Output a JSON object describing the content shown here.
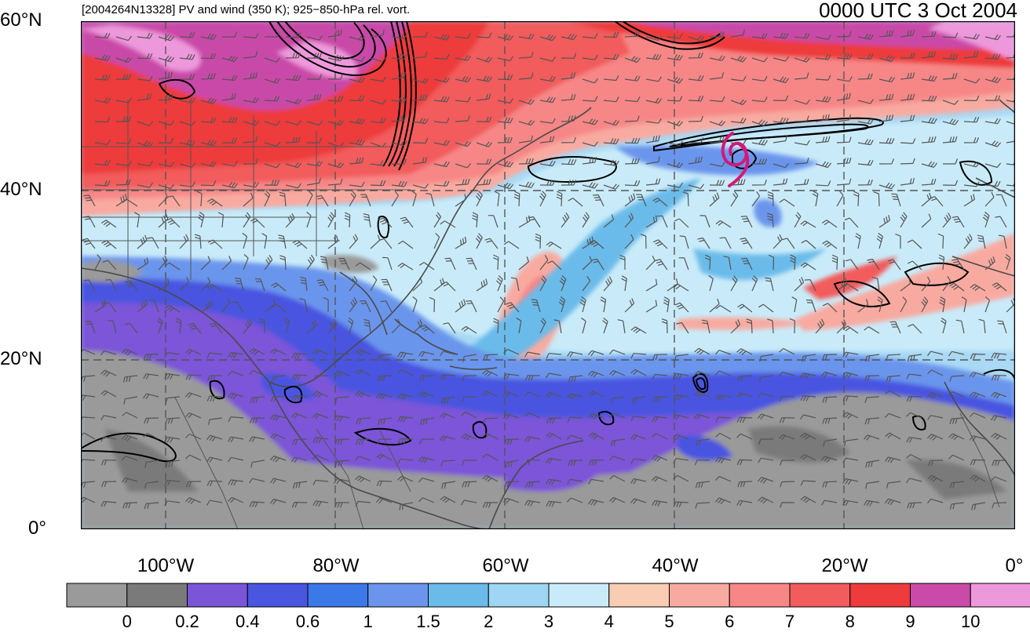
{
  "header": {
    "left_title": "[2004264N13328] PV and wind (350 K); 925−850-hPa rel. vort.",
    "right_title": "0000 UTC 3 Oct 2004"
  },
  "axes": {
    "lat_labels": [
      "60°N",
      "40°N",
      "20°N",
      "0°"
    ],
    "lon_labels": [
      "100°W",
      "80°W",
      "60°W",
      "40°W",
      "20°W",
      "0°"
    ],
    "lon_range": [
      -110,
      0
    ],
    "lat_range": [
      0,
      60
    ]
  },
  "colorbar": {
    "labels": [
      "0",
      "0.2",
      "0.4",
      "0.6",
      "1",
      "1.5",
      "2",
      "3",
      "4",
      "5",
      "6",
      "7",
      "8",
      "9",
      "10"
    ],
    "colors": [
      "#9a9a9a",
      "#7a7a7a",
      "#7b55d8",
      "#4a55e0",
      "#3b78e8",
      "#6b95ec",
      "#6bbbea",
      "#9ed6f3",
      "#c9ebf9",
      "#f9cdb3",
      "#f8aaa0",
      "#f78787",
      "#f25c5c",
      "#ee3b3b",
      "#c94aa8",
      "#ee98dc"
    ]
  },
  "storm": {
    "symbol": "tropical-cyclone-icon",
    "color": "#d2197a",
    "lon": -34,
    "lat": 44
  }
}
